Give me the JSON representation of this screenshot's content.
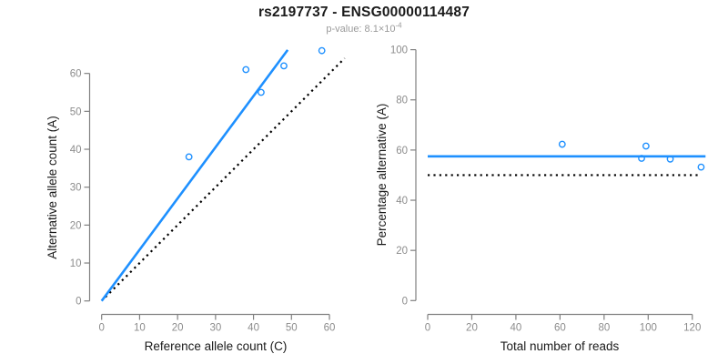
{
  "title": "rs2197737 - ENSG00000114487",
  "subtitle": {
    "text": "p-value: 8.1×10",
    "exponent": "-4"
  },
  "colors": {
    "accent_blue": "#1E90FF",
    "reference_black": "#000000",
    "axis": "#808080",
    "tick_label": "#8c8c8c",
    "axis_title": "#1a1a1a"
  },
  "chart_data": [
    {
      "id": "allele-count-scatter",
      "type": "scatter",
      "xlabel": "Reference allele count (C)",
      "ylabel": "Alternative allele count (A)",
      "xticks": [
        0,
        10,
        20,
        30,
        40,
        50,
        60
      ],
      "yticks": [
        0,
        10,
        20,
        30,
        40,
        50,
        60
      ],
      "xlim": [
        0,
        63
      ],
      "ylim": [
        0,
        67
      ],
      "grid": false,
      "legend": "none",
      "points": [
        [
          23,
          38
        ],
        [
          38,
          61
        ],
        [
          42,
          55
        ],
        [
          48,
          62
        ],
        [
          58,
          66
        ]
      ],
      "lines": [
        {
          "name": "identity-line",
          "style": "dotted",
          "color": "#000000",
          "from": [
            1,
            1
          ],
          "to": [
            64,
            64
          ]
        },
        {
          "name": "fit-line",
          "style": "solid",
          "color": "#1E90FF",
          "from": [
            0,
            0
          ],
          "to": [
            49,
            66.2
          ]
        }
      ]
    },
    {
      "id": "percentage-vs-reads-scatter",
      "type": "scatter",
      "xlabel": "Total number of reads",
      "ylabel": "Percentage alternative (A)",
      "xticks": [
        0,
        20,
        40,
        60,
        80,
        100,
        120
      ],
      "yticks": [
        0,
        20,
        40,
        60,
        80,
        100
      ],
      "xlim": [
        0,
        126
      ],
      "ylim": [
        0,
        100
      ],
      "grid": false,
      "legend": "none",
      "points": [
        [
          61,
          62.3
        ],
        [
          97,
          56.7
        ],
        [
          99,
          61.6
        ],
        [
          110,
          56.4
        ],
        [
          124,
          53.2
        ]
      ],
      "lines": [
        {
          "name": "null-50pct-line",
          "style": "dotted",
          "color": "#000000",
          "from": [
            0,
            50
          ],
          "to": [
            124,
            50
          ]
        },
        {
          "name": "mean-percentage-line",
          "style": "solid",
          "color": "#1E90FF",
          "from": [
            0,
            57.5
          ],
          "to": [
            126,
            57.5
          ]
        }
      ]
    }
  ]
}
